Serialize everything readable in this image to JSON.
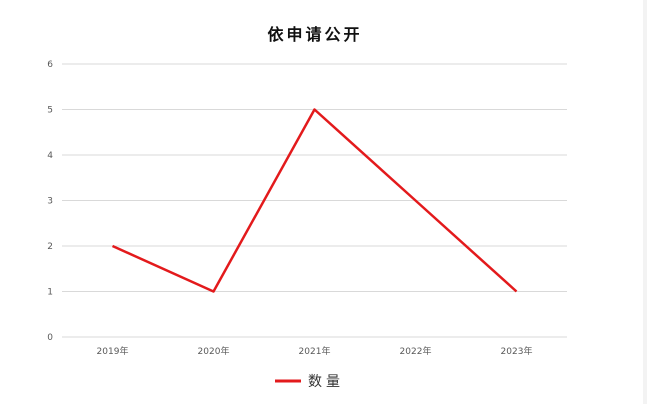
{
  "chart_data": {
    "type": "line",
    "title": "依申请公开",
    "categories": [
      "2019年",
      "2020年",
      "2021年",
      "2022年",
      "2023年"
    ],
    "series": [
      {
        "name": "数量",
        "values": [
          2,
          1,
          5,
          3,
          1
        ],
        "color": "#e31a1c"
      }
    ],
    "ylim": [
      0,
      6
    ],
    "yticks": [
      "0",
      "1",
      "2",
      "3",
      "4",
      "5",
      "6"
    ],
    "grid": true,
    "legend": "bottom"
  }
}
